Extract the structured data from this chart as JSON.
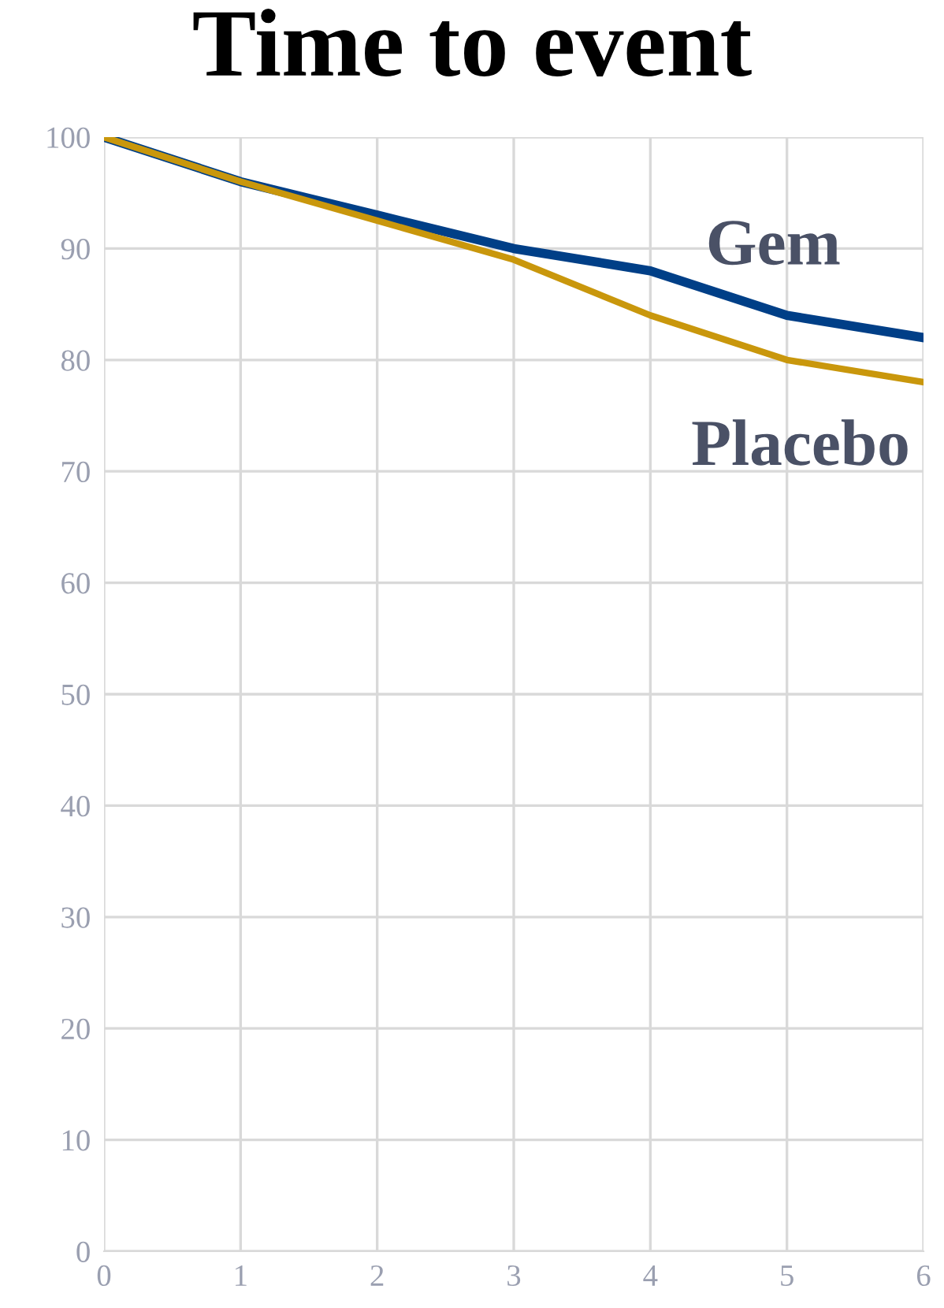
{
  "chart_data": {
    "type": "line",
    "title": "Time to event",
    "x": [
      0,
      1,
      2,
      3,
      4,
      5,
      6
    ],
    "series": [
      {
        "name": "Gem",
        "color": "#003f87",
        "values": [
          100,
          96,
          93,
          90,
          88,
          84,
          82
        ]
      },
      {
        "name": "Placebo",
        "color": "#c9970c",
        "values": [
          100,
          96,
          92.5,
          89,
          84,
          80,
          78
        ]
      }
    ],
    "xlim": [
      0,
      6
    ],
    "xticks": [
      0,
      1,
      2,
      3,
      4,
      5,
      6
    ],
    "ylim": [
      0,
      100
    ],
    "yticks": [
      0,
      10,
      20,
      30,
      40,
      50,
      60,
      70,
      80,
      90,
      100
    ],
    "grid": true,
    "legend": false,
    "marker": "none",
    "line_style": "solid"
  }
}
